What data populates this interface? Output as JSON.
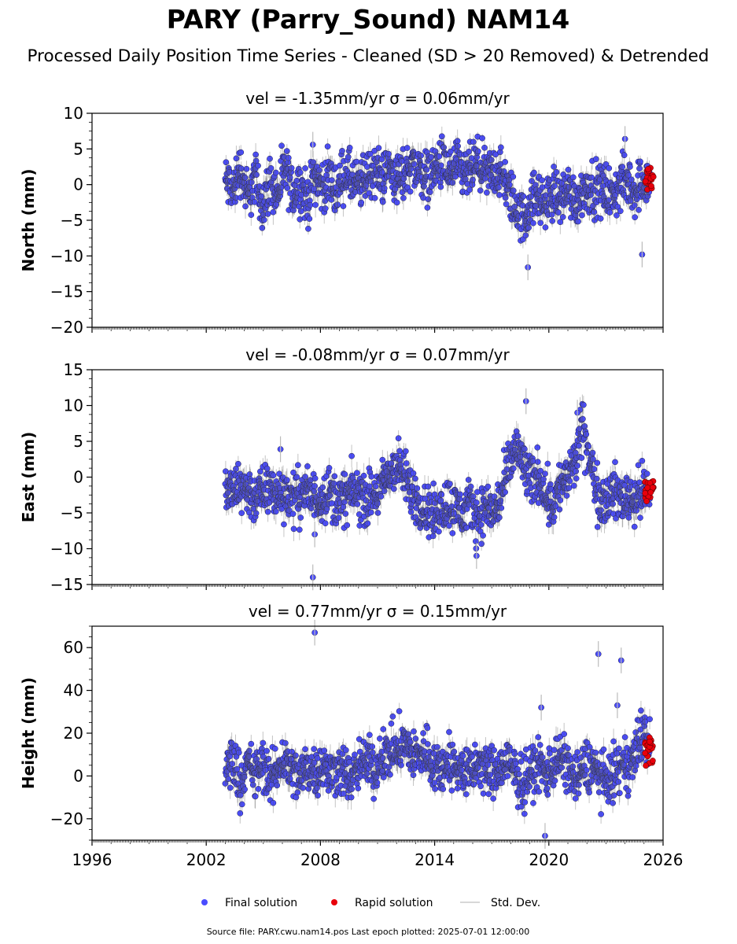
{
  "figure": {
    "title": "PARY (Parry_Sound) NAM14",
    "subtitle": "Processed Daily Position Time Series - Cleaned (SD > 20 Removed) & Detrended",
    "footer": "Source file: PARY.cwu.nam14.pos  Last epoch plotted: 2025-07-01 12:00:00"
  },
  "legend": {
    "placement": "bottom-center",
    "items": [
      {
        "label": "Final solution",
        "color": "#4a4cff",
        "marker": "dot"
      },
      {
        "label": "Rapid solution",
        "color": "#e8000b",
        "marker": "dot"
      },
      {
        "label": "Std. Dev.",
        "color": "#cccccc",
        "marker": "line"
      }
    ]
  },
  "chart_data": [
    {
      "type": "scatter",
      "title": "vel = -1.35mm/yr   σ = 0.06mm/yr",
      "ylabel": "North (mm)",
      "xlim": [
        1996,
        2026
      ],
      "ylim": [
        -20,
        10
      ],
      "yticks": [
        10,
        5,
        0,
        -5,
        -10,
        -15,
        -20
      ],
      "xticks": [],
      "grid": false,
      "final_solution": {
        "x_start": 2003.0,
        "x_end": 2025.3,
        "step": 0.02,
        "y": [
          0.5,
          -1.0,
          2.5,
          -2.0,
          1.0,
          -3.0,
          0.5,
          -1.5,
          2.0,
          -1.0,
          0.0,
          -2.5,
          1.5,
          -0.5,
          1.0,
          -1.0,
          2.0,
          0.5,
          -0.5,
          1.5,
          2.0,
          1.0,
          2.5,
          0.5,
          1.5,
          3.0,
          2.0,
          1.0,
          2.0,
          3.0,
          1.5,
          2.5,
          1.0,
          2.0,
          3.0,
          1.0,
          2.0,
          1.5,
          -1.0,
          -3.0,
          -5.0,
          -2.5,
          -1.5,
          -3.0,
          -1.0,
          -2.0,
          -0.5,
          -2.5,
          -1.0,
          0.0,
          -1.0,
          -0.5,
          -2.0,
          0.0,
          0.5,
          -1.0,
          1.0,
          0.0
        ],
        "extremes": [
          [
            2007.6,
            5.6
          ],
          [
            2018.9,
            -11.6
          ],
          [
            2024.0,
            6.4
          ],
          [
            2024.9,
            -9.8
          ]
        ]
      },
      "rapid_solution": {
        "x_start": 2025.05,
        "x_end": 2025.5,
        "y_range": [
          -0.8,
          2.5
        ]
      }
    },
    {
      "type": "scatter",
      "title": "vel = -0.08mm/yr   σ = 0.07mm/yr",
      "ylabel": "East (mm)",
      "xlim": [
        1996,
        2026
      ],
      "ylim": [
        -15,
        15
      ],
      "yticks": [
        15,
        10,
        5,
        0,
        -5,
        -10,
        -15
      ],
      "xticks": [],
      "grid": false,
      "final_solution": {
        "x_start": 2003.0,
        "x_end": 2025.3,
        "step": 0.02,
        "y": [
          -1.5,
          -2.5,
          -1.0,
          -2.0,
          -3.0,
          -2.0,
          -1.5,
          -2.5,
          -2.0,
          -3.0,
          -2.5,
          -2.0,
          -3.0,
          -2.5,
          -2.0,
          -3.5,
          -3.0,
          -2.0,
          -2.5,
          -3.0,
          -2.5,
          -1.5,
          0.5,
          2.0,
          0.0,
          -2.0,
          -3.5,
          -4.5,
          -5.5,
          -4.0,
          -3.5,
          -4.5,
          -5.0,
          -4.0,
          -5.5,
          -4.0,
          -5.0,
          -3.0,
          1.0,
          4.0,
          2.0,
          -1.0,
          0.5,
          -2.0,
          -4.0,
          -1.0,
          0.0,
          2.0,
          7.0,
          2.0,
          -2.5,
          -3.0,
          -2.0,
          -3.0,
          -2.5,
          -3.0,
          -2.0,
          -2.5
        ],
        "extremes": [
          [
            2007.6,
            -14.0
          ],
          [
            2007.7,
            -8.0
          ],
          [
            2005.9,
            3.9
          ],
          [
            2016.2,
            -11.0
          ],
          [
            2018.8,
            10.6
          ],
          [
            2021.5,
            9.0
          ]
        ]
      },
      "rapid_solution": {
        "x_start": 2025.05,
        "x_end": 2025.5,
        "y_range": [
          -3.5,
          -0.3
        ]
      }
    },
    {
      "type": "scatter",
      "title": "vel = 0.77mm/yr   σ = 0.15mm/yr",
      "ylabel": "Height (mm)",
      "xlim": [
        1996,
        2026
      ],
      "ylim": [
        -30,
        70
      ],
      "yticks": [
        60,
        40,
        20,
        0,
        -20
      ],
      "xticks": [
        "1996",
        "2002",
        "2008",
        "2014",
        "2020",
        "2026"
      ],
      "xticks_at": [
        1996,
        2002,
        2008,
        2014,
        2020,
        2026
      ],
      "grid": false,
      "final_solution": {
        "x_start": 2003.0,
        "x_end": 2025.3,
        "step": 0.02,
        "y": [
          2.0,
          8.0,
          -2.0,
          5.0,
          0.0,
          6.0,
          -4.0,
          4.0,
          8.0,
          2.0,
          -1.0,
          5.0,
          3.0,
          6.0,
          0.0,
          4.0,
          2.0,
          -2.0,
          5.0,
          7.0,
          3.0,
          9.0,
          11.0,
          13.0,
          15.0,
          11.0,
          8.0,
          12.0,
          5.0,
          3.0,
          8.0,
          2.0,
          4.0,
          0.0,
          6.0,
          3.0,
          1.0,
          4.0,
          6.0,
          0.0,
          -3.0,
          2.0,
          5.0,
          1.0,
          6.0,
          8.0,
          4.0,
          -2.0,
          3.0,
          6.0,
          2.0,
          -4.0,
          1.0,
          3.0,
          5.0,
          10.0,
          20.0,
          14.0
        ],
        "extremes": [
          [
            2007.7,
            67.0
          ],
          [
            2022.6,
            57.0
          ],
          [
            2023.8,
            54.0
          ],
          [
            2023.6,
            33.0
          ],
          [
            2019.6,
            32.0
          ],
          [
            2019.8,
            -28.0
          ]
        ]
      },
      "rapid_solution": {
        "x_start": 2025.05,
        "x_end": 2025.5,
        "y_range": [
          4.0,
          18.0
        ]
      }
    }
  ]
}
